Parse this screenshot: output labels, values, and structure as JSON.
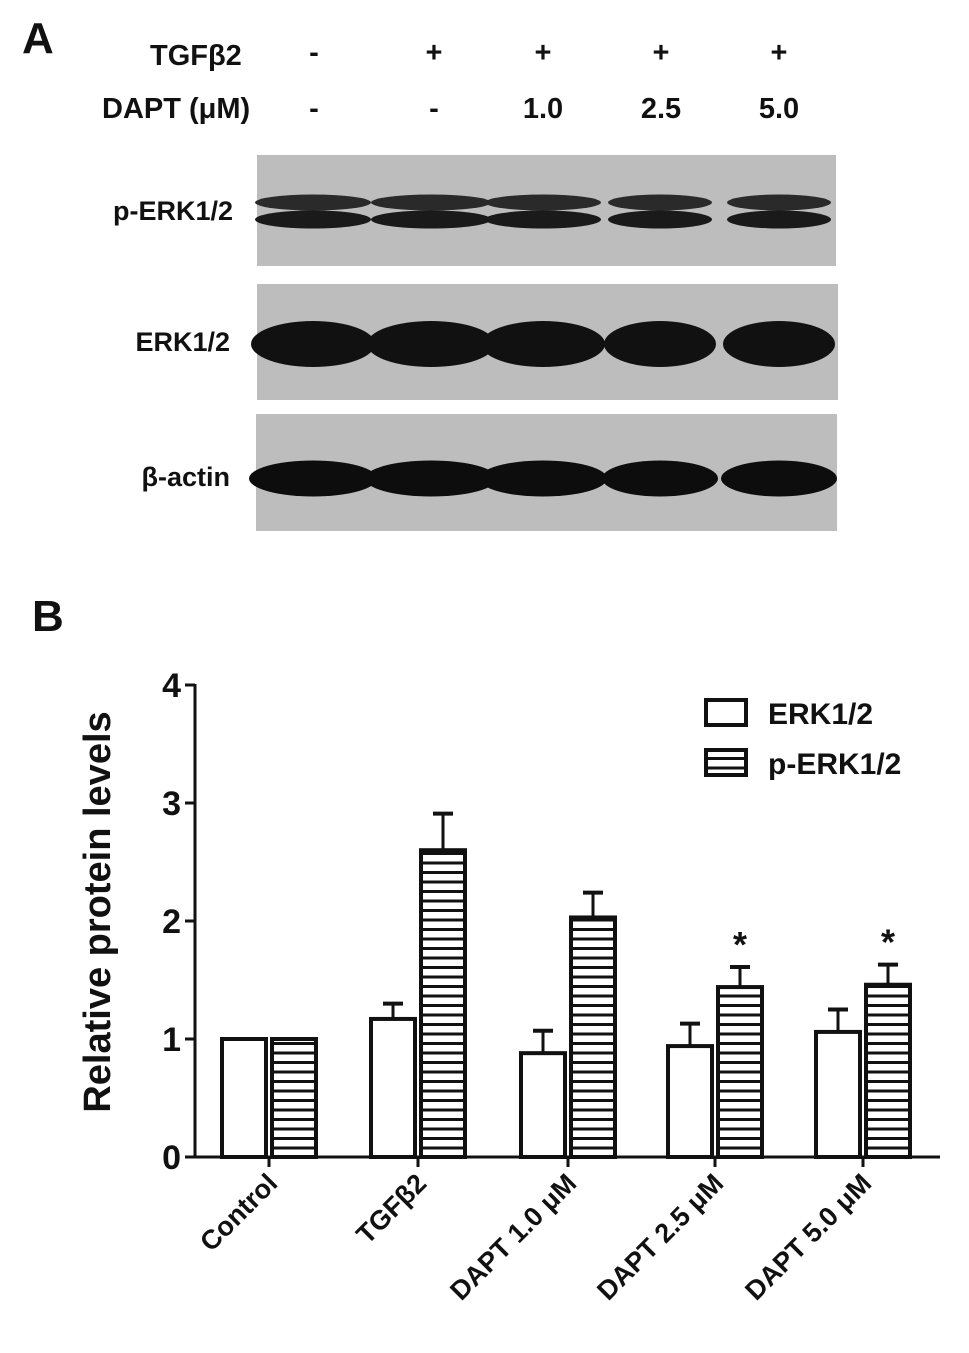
{
  "panel_a": {
    "letter": "A",
    "rows": [
      {
        "label": "TGFβ2",
        "values": [
          "-",
          "+",
          "+",
          "+",
          "+"
        ]
      },
      {
        "label": "DAPT (μM)",
        "values": [
          "-",
          "-",
          "1.0",
          "2.5",
          "5.0"
        ]
      }
    ],
    "blots": [
      {
        "label": "p-ERK1/2",
        "band_style": "doublet"
      },
      {
        "label": "ERK1/2",
        "band_style": "thick"
      },
      {
        "label": "β-actin",
        "band_style": "single"
      }
    ]
  },
  "chart_data": {
    "panel_letter": "B",
    "type": "bar",
    "ylabel": "Relative protein levels",
    "xlabel": "",
    "ylim": [
      0,
      4
    ],
    "yticks": [
      "0",
      "1",
      "2",
      "3",
      "4"
    ],
    "categories": [
      "Control",
      "TGFβ2",
      "DAPT 1.0 μM",
      "DAPT 2.5 μM",
      "DAPT 5.0 μM"
    ],
    "series": [
      {
        "name": "ERK1/2",
        "fill": "open",
        "values": [
          1.0,
          1.17,
          0.88,
          0.94,
          1.06
        ],
        "error_upper": [
          1.0,
          1.3,
          1.07,
          1.13,
          1.25
        ]
      },
      {
        "name": "p-ERK1/2",
        "fill": "horizontal-stripes",
        "values": [
          1.0,
          2.6,
          2.03,
          1.44,
          1.46
        ],
        "error_upper": [
          1.0,
          2.91,
          2.24,
          1.61,
          1.63
        ]
      }
    ],
    "annotations": [
      {
        "category": "DAPT 2.5 μM",
        "series": "p-ERK1/2",
        "text": "*"
      },
      {
        "category": "DAPT 5.0 μM",
        "series": "p-ERK1/2",
        "text": "*"
      }
    ],
    "legend_position": "top-right",
    "grid": false
  }
}
